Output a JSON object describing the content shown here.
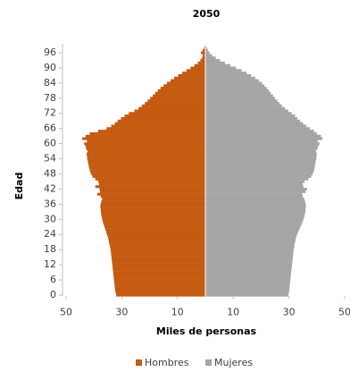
{
  "chart_data": {
    "type": "bar",
    "orientation": "horizontal",
    "title": "2050",
    "x_label": "Miles de personas",
    "y_label": "Edad",
    "y": [
      0,
      1,
      2,
      3,
      4,
      5,
      6,
      7,
      8,
      9,
      10,
      11,
      12,
      13,
      14,
      15,
      16,
      17,
      18,
      19,
      20,
      21,
      22,
      23,
      24,
      25,
      26,
      27,
      28,
      29,
      30,
      31,
      32,
      33,
      34,
      35,
      36,
      37,
      38,
      39,
      40,
      41,
      42,
      43,
      44,
      45,
      46,
      47,
      48,
      49,
      50,
      51,
      52,
      53,
      54,
      55,
      56,
      57,
      58,
      59,
      60,
      61,
      62,
      63,
      64,
      65,
      66,
      67,
      68,
      69,
      70,
      71,
      72,
      73,
      74,
      75,
      76,
      77,
      78,
      79,
      80,
      81,
      82,
      83,
      84,
      85,
      86,
      87,
      88,
      89,
      90,
      91,
      92,
      93,
      94,
      95,
      96,
      97,
      98,
      99
    ],
    "series": [
      {
        "name": "Hombres",
        "color": "#c55a11",
        "values": [
          -32.0,
          -32.2,
          -32.4,
          -32.5,
          -32.6,
          -32.7,
          -32.8,
          -32.9,
          -33.0,
          -33.1,
          -33.2,
          -33.3,
          -33.4,
          -33.5,
          -33.6,
          -33.7,
          -33.8,
          -33.9,
          -34.0,
          -34.2,
          -34.4,
          -34.6,
          -34.8,
          -35.0,
          -35.3,
          -35.6,
          -35.9,
          -36.2,
          -36.5,
          -36.8,
          -37.0,
          -37.2,
          -37.4,
          -37.5,
          -37.6,
          -37.7,
          -37.6,
          -37.4,
          -37.0,
          -37.5,
          -38.8,
          -37.8,
          -38.0,
          -39.5,
          -38.2,
          -38.5,
          -39.5,
          -40.5,
          -41.0,
          -41.4,
          -41.6,
          -41.8,
          -42.0,
          -42.2,
          -42.4,
          -42.5,
          -42.6,
          -42.3,
          -42.8,
          -43.0,
          -43.5,
          -42.5,
          -44.2,
          -43.0,
          -41.5,
          -38.5,
          -35.5,
          -33.8,
          -32.5,
          -31.5,
          -30.3,
          -29.0,
          -27.5,
          -25.5,
          -24.0,
          -22.8,
          -21.7,
          -20.7,
          -19.8,
          -18.9,
          -18.0,
          -17.1,
          -16.1,
          -15.0,
          -13.8,
          -12.5,
          -11.2,
          -9.8,
          -8.3,
          -6.8,
          -5.3,
          -3.9,
          -2.7,
          -1.8,
          -1.2,
          -0.9,
          -1.6,
          -1.0,
          -0.4,
          -0.2
        ]
      },
      {
        "name": "Mujeres",
        "color": "#a5a5a5",
        "values": [
          29.8,
          30.0,
          30.1,
          30.2,
          30.3,
          30.4,
          30.5,
          30.6,
          30.7,
          30.8,
          30.9,
          31.0,
          31.1,
          31.2,
          31.3,
          31.4,
          31.5,
          31.6,
          31.7,
          31.9,
          32.0,
          32.2,
          32.4,
          32.6,
          32.9,
          33.3,
          33.7,
          34.1,
          34.5,
          34.9,
          35.2,
          35.5,
          35.7,
          35.9,
          36.0,
          36.1,
          36.0,
          35.8,
          35.5,
          35.0,
          34.8,
          36.0,
          36.5,
          35.2,
          34.9,
          35.6,
          37.0,
          38.0,
          38.5,
          38.9,
          39.1,
          39.3,
          39.5,
          39.6,
          39.8,
          39.9,
          40.0,
          39.7,
          40.2,
          40.5,
          41.0,
          40.3,
          42.0,
          41.5,
          40.0,
          39.0,
          37.5,
          36.3,
          35.1,
          34.0,
          33.0,
          32.2,
          31.0,
          29.8,
          28.6,
          27.5,
          26.6,
          25.8,
          25.0,
          24.3,
          23.5,
          22.8,
          22.0,
          21.2,
          20.3,
          19.2,
          17.9,
          16.4,
          14.8,
          13.0,
          11.0,
          9.0,
          7.0,
          5.3,
          3.7,
          2.4,
          1.5,
          0.9,
          0.5,
          0.2
        ]
      }
    ],
    "xlim": [
      -50,
      50
    ],
    "xticks": [
      {
        "value": -50,
        "label": "50"
      },
      {
        "value": -30,
        "label": "30"
      },
      {
        "value": -10,
        "label": "10"
      },
      10,
      30,
      50
    ],
    "ylim": [
      -0.5,
      99.5
    ],
    "yticks": [
      0,
      6,
      12,
      18,
      24,
      30,
      36,
      42,
      48,
      54,
      60,
      66,
      72,
      78,
      84,
      90,
      96
    ],
    "legend": "bottom"
  }
}
